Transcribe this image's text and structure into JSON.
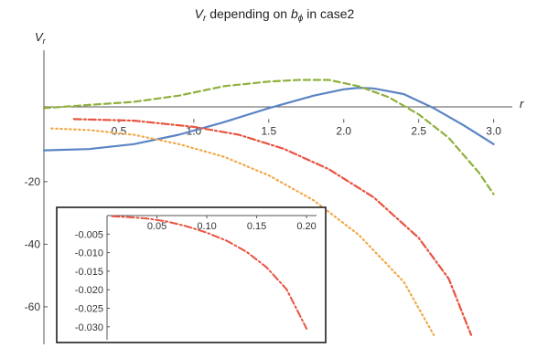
{
  "chart_data": [
    {
      "type": "line",
      "title_parts": [
        "V",
        "r",
        " depending on ",
        "b",
        "ϕ",
        " in case2"
      ],
      "xlabel": "r",
      "ylabel_parts": [
        "V",
        "r"
      ],
      "xlim": [
        0,
        3.1
      ],
      "ylim": [
        -72,
        22
      ],
      "x_ticks": [
        0.5,
        1.0,
        1.5,
        2.0,
        2.5,
        3.0
      ],
      "x_tick_labels": [
        "0.5",
        "1.0",
        "1.5",
        "2.0",
        "2.5",
        "3.0"
      ],
      "y_ticks": [
        -20,
        -40,
        -60
      ],
      "y_tick_labels": [
        "-20",
        "-40",
        "-60"
      ],
      "grid": false,
      "legend": "none",
      "series": [
        {
          "style": "solid",
          "color": "#5b84c4",
          "x": [
            0,
            0.3,
            0.6,
            0.9,
            1.2,
            1.5,
            1.8,
            2.0,
            2.1,
            2.2,
            2.4,
            2.6,
            2.8,
            3.0
          ],
          "y": [
            -10,
            -9.6,
            -8,
            -5,
            -1,
            3.5,
            7.5,
            9.5,
            10,
            9.8,
            8,
            3.5,
            -2,
            -8
          ]
        },
        {
          "style": "dashed",
          "color": "#8fb03b",
          "x": [
            0,
            0.3,
            0.6,
            0.9,
            1.2,
            1.5,
            1.7,
            1.9,
            2.1,
            2.3,
            2.5,
            2.7,
            2.9,
            3.0
          ],
          "y": [
            3.5,
            4.5,
            5.5,
            7.5,
            10.5,
            12,
            12.5,
            12.5,
            10.5,
            7,
            1.5,
            -6,
            -17,
            -24
          ]
        },
        {
          "style": "dotted",
          "color": "#f0a94a",
          "x": [
            0.05,
            0.3,
            0.6,
            0.9,
            1.2,
            1.5,
            1.8,
            2.1,
            2.4,
            2.6
          ],
          "y": [
            -3,
            -3.5,
            -5,
            -8,
            -12,
            -18,
            -26,
            -37,
            -52,
            -69
          ]
        },
        {
          "style": "dashdot",
          "color": "#e8533f",
          "x": [
            0.2,
            0.6,
            1.0,
            1.3,
            1.6,
            1.9,
            2.2,
            2.5,
            2.7,
            2.85
          ],
          "y": [
            0,
            -0.5,
            -2.5,
            -5,
            -9.5,
            -16,
            -25,
            -38,
            -51,
            -69
          ]
        }
      ]
    },
    {
      "type": "line",
      "title": "",
      "xlim": [
        0,
        0.21
      ],
      "ylim": [
        -0.0335,
        0
      ],
      "x_ticks": [
        0.05,
        0.1,
        0.15,
        0.2
      ],
      "x_tick_labels": [
        "0.05",
        "0.10",
        "0.15",
        "0.20"
      ],
      "y_ticks": [
        -0.005,
        -0.01,
        -0.015,
        -0.02,
        -0.025,
        -0.03
      ],
      "y_tick_labels": [
        "-0.005",
        "-0.010",
        "-0.015",
        "-0.020",
        "-0.025",
        "-0.030"
      ],
      "grid": false,
      "legend": "none",
      "series": [
        {
          "style": "dashdot",
          "color": "#e8533f",
          "x": [
            0.005,
            0.02,
            0.04,
            0.06,
            0.08,
            0.1,
            0.12,
            0.14,
            0.16,
            0.18,
            0.2
          ],
          "y": [
            -0.0002,
            -0.0004,
            -0.0008,
            -0.0016,
            -0.0029,
            -0.0046,
            -0.0068,
            -0.0098,
            -0.014,
            -0.0199,
            -0.0305
          ]
        }
      ]
    }
  ]
}
